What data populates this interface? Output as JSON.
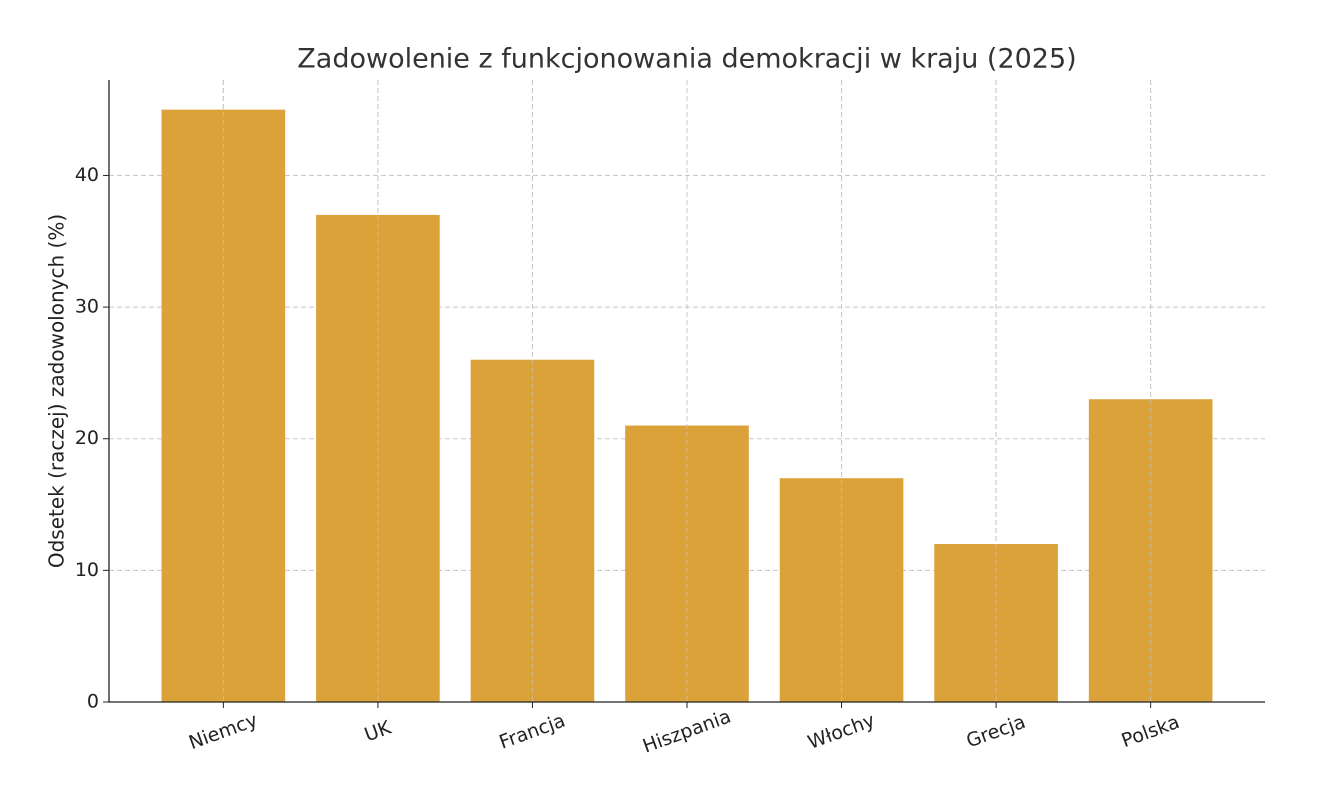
{
  "chart_data": {
    "type": "bar",
    "title": "Zadowolenie z funkcjonowania demokracji w kraju (2025)",
    "y_label": "Odsetek (raczej) zadowolonych (%)",
    "categories": [
      "Niemcy",
      "UK",
      "Francja",
      "Hiszpania",
      "Włochy",
      "Grecja",
      "Polska"
    ],
    "values": [
      45,
      37,
      26,
      21,
      17,
      12,
      23
    ],
    "color": "#dba23a",
    "ylim": [
      0,
      47.25
    ],
    "yticks": [
      0,
      10,
      20,
      30,
      40
    ],
    "grid": true
  }
}
